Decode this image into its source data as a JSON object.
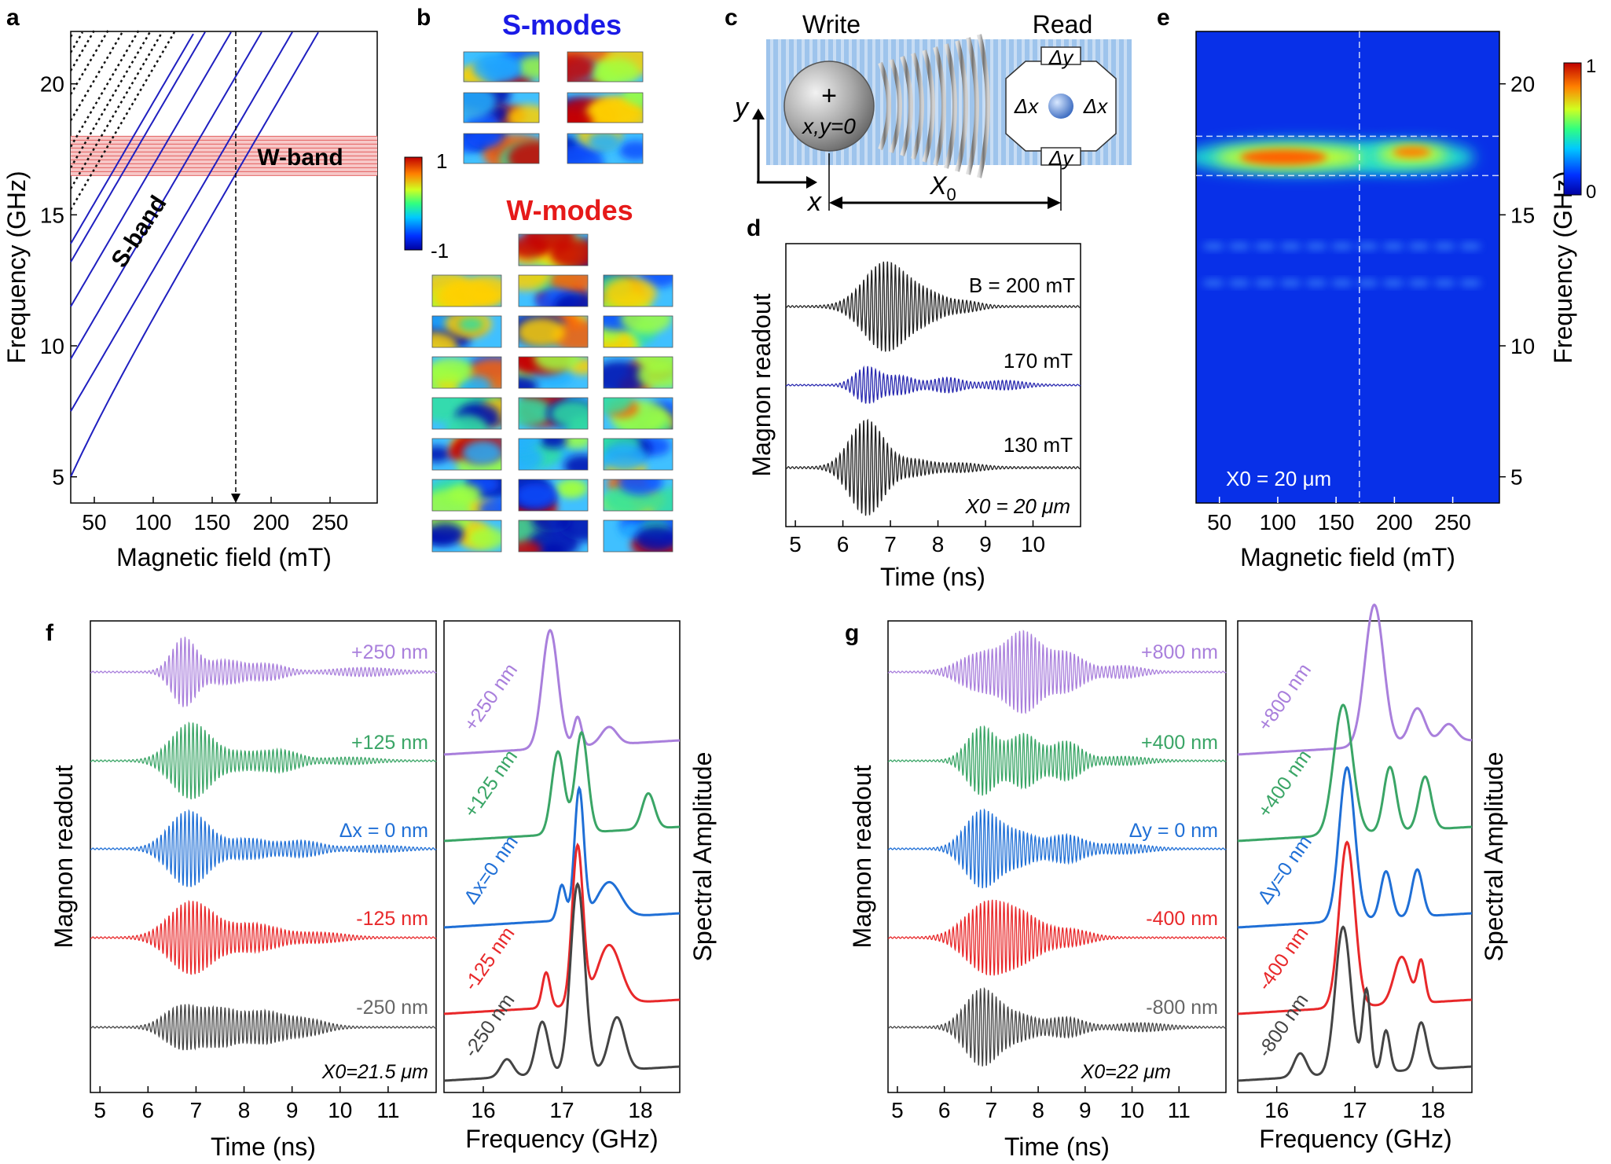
{
  "panel_letters": {
    "a": "a",
    "b": "b",
    "c": "c",
    "d": "d",
    "e": "e",
    "f": "f",
    "g": "g"
  },
  "colors": {
    "s_band": "#1f1fc0",
    "w_band_fill": "#f7c8c8",
    "w_band_line": "#e05050",
    "s_modes_title": "#1a1ae6",
    "w_modes_title": "#e61a1a",
    "purple": "#a97fdc",
    "green": "#3aa566",
    "blue": "#1f6fd6",
    "red": "#e8282a",
    "gray": "#444444",
    "blue_trace": "#2a2ab0"
  },
  "chart_data": [
    {
      "panel": "a",
      "type": "line",
      "xlabel": "Magnetic field (mT)",
      "ylabel": "Frequency (GHz)",
      "xlim": [
        30,
        290
      ],
      "ylim": [
        4,
        22
      ],
      "xticks": [
        50,
        100,
        150,
        200,
        250
      ],
      "yticks": [
        5,
        10,
        15,
        20
      ],
      "band_labels": {
        "s": "S-band",
        "w": "W-band"
      },
      "w_band_range": [
        16.5,
        18
      ],
      "marker_field": 170,
      "s_band_offsets": [
        5.0,
        7.5,
        9.5,
        11.5,
        13.2,
        13.9
      ],
      "slope_ghz_per_mt": 0.077
    },
    {
      "panel": "b",
      "type": "heatmap",
      "s_title": "S-modes",
      "w_title": "W-modes",
      "colorbar_max": "1",
      "colorbar_min": "-1"
    },
    {
      "panel": "c",
      "type": "diagram",
      "write_label": "Write",
      "read_label": "Read",
      "y_axis": "y",
      "x_axis": "x",
      "origin_sym": "+",
      "origin_label": "x,y=0",
      "distance_label": "X",
      "distance_sub": "0",
      "delta_x": "Δx",
      "delta_y": "Δy"
    },
    {
      "panel": "d",
      "type": "line",
      "xlabel": "Time (ns)",
      "ylabel": "Magnon readout",
      "xlim": [
        4.8,
        11
      ],
      "xticks": [
        5,
        6,
        7,
        8,
        9,
        10
      ],
      "series": [
        {
          "name": "B = 200 mT",
          "peak": 6.9,
          "amp": 1.0
        },
        {
          "name": "170 mT",
          "peak": 6.5,
          "amp": 0.5
        },
        {
          "name": "130 mT",
          "peak": 6.5,
          "amp": 0.95
        }
      ],
      "annotation": "X0 = 20 μm"
    },
    {
      "panel": "e",
      "type": "heatmap",
      "xlabel": "Magnetic field (mT)",
      "ylabel": "Frequency (GHz)",
      "xlim": [
        30,
        290
      ],
      "ylim": [
        4,
        22
      ],
      "xticks": [
        50,
        100,
        150,
        200,
        250
      ],
      "yticks": [
        5,
        10,
        15,
        20
      ],
      "annotation": "X0 = 20 μm",
      "colorbar_max": "1",
      "colorbar_min": "0",
      "band_lines": [
        16.5,
        18
      ],
      "marker_field": 170
    },
    {
      "panel": "f",
      "type": "line",
      "time": {
        "xlabel": "Time (ns)",
        "ylabel": "Magnon readout",
        "xlim": [
          4.8,
          12
        ],
        "xticks": [
          5,
          6,
          7,
          8,
          9,
          10,
          11
        ],
        "annotation": "X0=21.5 μm"
      },
      "spectrum": {
        "xlabel": "Frequency (GHz)",
        "ylabel": "Spectral Amplitude",
        "xlim": [
          15.5,
          18.5
        ],
        "xticks": [
          16,
          17,
          18
        ]
      },
      "series": [
        {
          "name": "+250 nm",
          "spec_label": "+250 nm"
        },
        {
          "name": "+125 nm",
          "spec_label": "+125 nm"
        },
        {
          "name": "Δx = 0 nm",
          "spec_label": "Δx=0 nm"
        },
        {
          "name": "-125 nm",
          "spec_label": "-125 nm"
        },
        {
          "name": "-250 nm",
          "spec_label": "-250 nm"
        }
      ]
    },
    {
      "panel": "g",
      "type": "line",
      "time": {
        "xlabel": "Time (ns)",
        "ylabel": "Magnon readout",
        "xlim": [
          4.8,
          12
        ],
        "xticks": [
          5,
          6,
          7,
          8,
          9,
          10,
          11
        ],
        "annotation": "X0=22 μm"
      },
      "spectrum": {
        "xlabel": "Frequency (GHz)",
        "ylabel": "Spectral Amplitude",
        "xlim": [
          15.5,
          18.5
        ],
        "xticks": [
          16,
          17,
          18
        ]
      },
      "series": [
        {
          "name": "+800 nm",
          "spec_label": "+800 nm"
        },
        {
          "name": "+400 nm",
          "spec_label": "+400 nm"
        },
        {
          "name": "Δy = 0 nm",
          "spec_label": "Δy=0 nm"
        },
        {
          "name": "-400 nm",
          "spec_label": "-400 nm"
        },
        {
          "name": "-800 nm",
          "spec_label": "-800 nm"
        }
      ]
    }
  ]
}
